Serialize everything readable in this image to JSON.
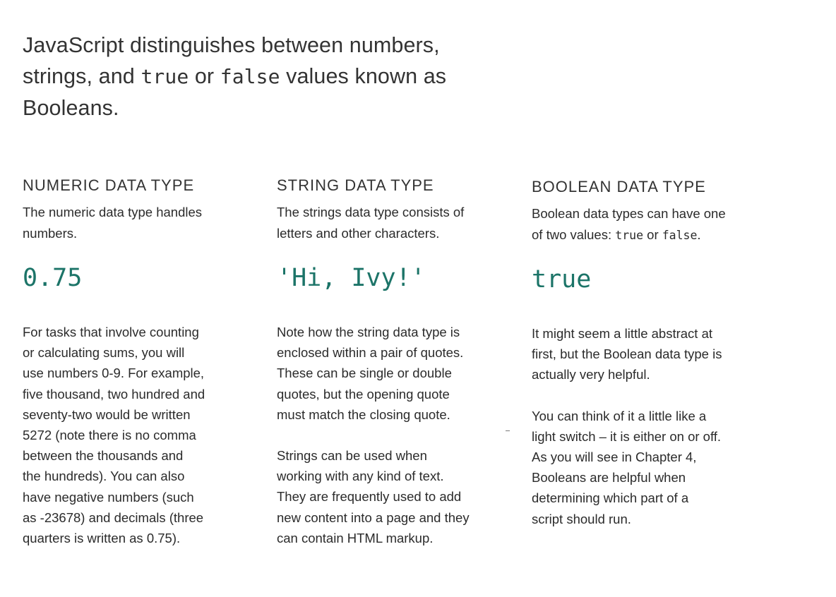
{
  "intro": {
    "part1": "JavaScript distinguishes between numbers,",
    "part2": "strings, and ",
    "code_true": "true",
    "part3": " or ",
    "code_false": "false",
    "part4": " values known as",
    "part5": "Booleans."
  },
  "columns": {
    "numeric": {
      "heading": "NUMERIC DATA TYPE",
      "desc_line1": "The numeric data type handles",
      "desc_line2": "numbers.",
      "example": "0.75",
      "body_lines": [
        "For tasks that involve counting",
        "or calculating sums, you will",
        "use numbers 0-9. For example,",
        "five thousand, two hundred and",
        "seventy-two would be written",
        "5272 (note there is no comma",
        "between the thousands and",
        "the hundreds). You can also",
        "have negative numbers (such",
        "as -23678) and decimals (three",
        "quarters is written as 0.75)."
      ]
    },
    "string": {
      "heading": "STRING DATA TYPE",
      "desc_line1": "The strings data type consists of",
      "desc_line2": "letters and other characters.",
      "example": "'Hi, Ivy!'",
      "body_para1_lines": [
        "Note how the string data type is",
        "enclosed within a pair of quotes.",
        "These can be single or double",
        "quotes, but the opening quote",
        "must match the closing quote."
      ],
      "body_para2_lines": [
        "Strings can be used when",
        "working with any kind of text.",
        "They are frequently used to add",
        "new content into a page and they",
        "can contain HTML markup."
      ]
    },
    "boolean": {
      "heading": "BOOLEAN DATA TYPE",
      "desc_line1": "Boolean data types can have one",
      "desc_line2_pre": "of two values: ",
      "desc_code_true": "true",
      "desc_mid": " or ",
      "desc_code_false": "false",
      "desc_end": ".",
      "example": "true",
      "body_para1_lines": [
        "It might seem a little abstract at",
        "first, but the Boolean data type is",
        "actually very helpful."
      ],
      "body_para2_lines": [
        "You can think of it a little like a",
        "light switch – it is either on or off.",
        "As you will see in Chapter 4,",
        "Booleans are helpful when",
        "determining which part of a",
        "script should run."
      ]
    }
  },
  "colors": {
    "accent": "#1c7468",
    "text": "#2b2b2b"
  }
}
